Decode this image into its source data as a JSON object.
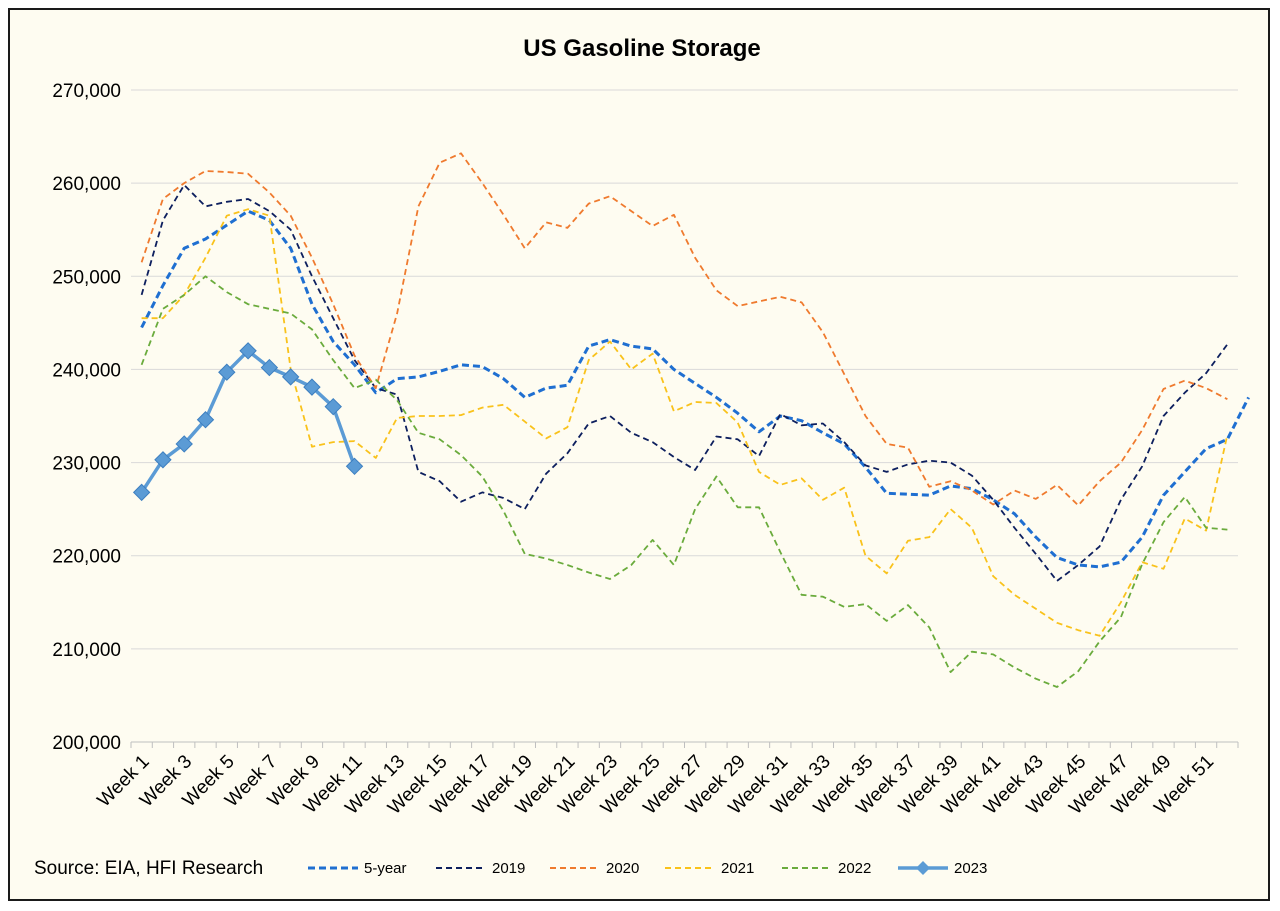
{
  "chart_data": {
    "type": "line",
    "title": "US Gasoline Storage",
    "source": "Source: EIA, HFI Research",
    "xlabel": "",
    "ylabel": "",
    "ylim": [
      200000,
      270000
    ],
    "y_ticks": [
      "200,000",
      "210,000",
      "220,000",
      "230,000",
      "240,000",
      "250,000",
      "260,000",
      "270,000"
    ],
    "y_tick_values": [
      200000,
      210000,
      220000,
      230000,
      240000,
      250000,
      260000,
      270000
    ],
    "x_tick_labels": [
      "Week 1",
      "Week 3",
      "Week 5",
      "Week 7",
      "Week 9",
      "Week 11",
      "Week 13",
      "Week 15",
      "Week 17",
      "Week 19",
      "Week 21",
      "Week 23",
      "Week 25",
      "Week 27",
      "Week 29",
      "Week 31",
      "Week 33",
      "Week 35",
      "Week 37",
      "Week 39",
      "Week 41",
      "Week 43",
      "Week 45",
      "Week 47",
      "Week 49",
      "Week 51"
    ],
    "grid": true,
    "legend_position": "bottom",
    "series": [
      {
        "name": "5-year",
        "color": "#1f6fd1",
        "style": "dashed-thick",
        "values": [
          244500,
          249000,
          253000,
          254000,
          255500,
          257000,
          256000,
          253000,
          247000,
          243000,
          240500,
          237500,
          239000,
          239200,
          239800,
          240500,
          240300,
          239000,
          237000,
          238000,
          238300,
          242500,
          243200,
          242500,
          242200,
          240000,
          238500,
          237000,
          235300,
          233300,
          235000,
          234500,
          233200,
          232000,
          229500,
          226700,
          226600,
          226500,
          227500,
          227200,
          226000,
          224500,
          222000,
          219800,
          219000,
          218800,
          219300,
          222000,
          226500,
          229000,
          231500,
          232500,
          237000
        ]
      },
      {
        "name": "2019",
        "color": "#0d1f5e",
        "style": "dashed",
        "values": [
          248000,
          256000,
          259800,
          257500,
          258000,
          258300,
          257000,
          255000,
          250000,
          245500,
          241000,
          238000,
          237300,
          229000,
          228000,
          225800,
          226800,
          226200,
          225000,
          228800,
          231000,
          234200,
          235000,
          233200,
          232200,
          230600,
          229200,
          232800,
          232500,
          230700,
          235200,
          234000,
          234200,
          232200,
          229700,
          229000,
          229800,
          230200,
          230000,
          228600,
          226000,
          223000,
          220200,
          217300,
          219000,
          221000,
          226000,
          229600,
          235000,
          237500,
          239600,
          242700
        ]
      },
      {
        "name": "2020",
        "color": "#ef7a2e",
        "style": "dashed",
        "values": [
          251500,
          258300,
          260000,
          261300,
          261200,
          261000,
          259000,
          256500,
          252000,
          247000,
          241500,
          238000,
          246000,
          257500,
          262200,
          263200,
          260000,
          256600,
          253000,
          255800,
          255200,
          257800,
          258600,
          257000,
          255400,
          256600,
          252000,
          248500,
          246800,
          247300,
          247800,
          247200,
          244000,
          239500,
          235000,
          232000,
          231600,
          227400,
          228000,
          227000,
          225500,
          227000,
          226100,
          227600,
          225400,
          228000,
          230000,
          233500,
          237900,
          238800,
          238000,
          236800
        ]
      },
      {
        "name": "2021",
        "color": "#f9c21b",
        "style": "dashed",
        "values": [
          245500,
          245500,
          248000,
          252000,
          256500,
          257200,
          256500,
          240000,
          231700,
          232200,
          232300,
          230500,
          234800,
          235000,
          235000,
          235100,
          235900,
          236200,
          234400,
          232600,
          233800,
          241000,
          243000,
          240000,
          241700,
          235500,
          236500,
          236400,
          234300,
          229000,
          227600,
          228300,
          226000,
          227300,
          220000,
          218100,
          221600,
          222000,
          225000,
          223000,
          217800,
          215800,
          214300,
          212800,
          212000,
          211400,
          215000,
          219300,
          218600,
          224000,
          222700,
          233000
        ]
      },
      {
        "name": "2022",
        "color": "#6aab3c",
        "style": "dashed",
        "values": [
          240500,
          246500,
          248000,
          250000,
          248300,
          247000,
          246500,
          246000,
          244300,
          241000,
          238000,
          238900,
          236700,
          233200,
          232500,
          230800,
          228500,
          224800,
          220200,
          219700,
          219000,
          218200,
          217500,
          219000,
          221700,
          219000,
          225000,
          228500,
          225200,
          225200,
          220400,
          215800,
          215600,
          214500,
          214800,
          213000,
          214700,
          212300,
          207500,
          209700,
          209400,
          208000,
          206800,
          205900,
          207600,
          210800,
          213400,
          219100,
          223600,
          226300,
          223000,
          222800
        ]
      },
      {
        "name": "2023",
        "color": "#5b9bd5",
        "style": "solid-marker",
        "values": [
          226800,
          230300,
          232000,
          234600,
          239700,
          242000,
          240200,
          239200,
          238100,
          236000,
          229600
        ]
      }
    ]
  }
}
